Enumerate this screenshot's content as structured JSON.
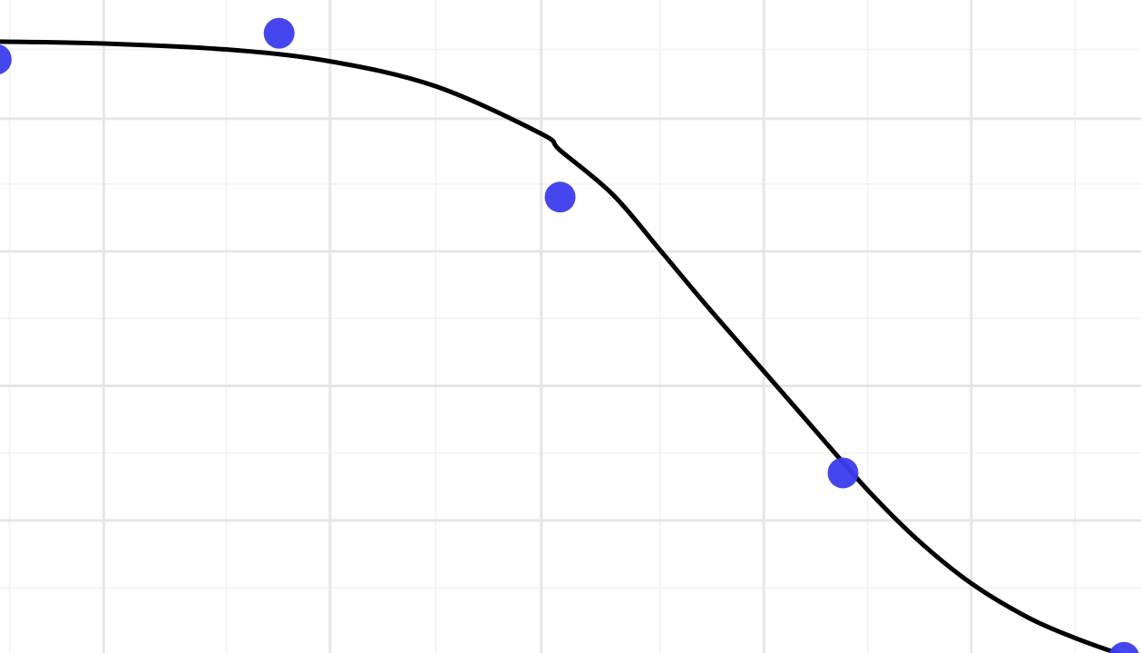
{
  "chart_data": {
    "type": "scatter",
    "title": "",
    "xlabel": "",
    "ylabel": "",
    "grid": true,
    "legend": "none",
    "xlim": [
      -0.25,
      5.8
    ],
    "ylim": [
      -0.1,
      1.55
    ],
    "x_major_gridlines": [
      0.3,
      1.5,
      2.62,
      3.8,
      4.9
    ],
    "x_minor_gridlines": [
      -0.2,
      0.95,
      2.06,
      3.25,
      4.35,
      5.45
    ],
    "y_major_gridlines": [
      1.25,
      0.915,
      0.575,
      0.235
    ],
    "y_minor_gridlines": [
      1.425,
      1.085,
      0.745,
      0.405,
      0.065
    ],
    "points": [
      {
        "x": -0.27,
        "y": 1.4
      },
      {
        "x": 1.23,
        "y": 1.466
      },
      {
        "x": 2.72,
        "y": 1.052
      },
      {
        "x": 4.22,
        "y": 0.355
      },
      {
        "x": 5.71,
        "y": -0.111
      }
    ],
    "fit_curve": [
      {
        "x": -0.26,
        "y": 1.445
      },
      {
        "x": 0.3,
        "y": 1.44
      },
      {
        "x": 0.95,
        "y": 1.425
      },
      {
        "x": 1.5,
        "y": 1.395
      },
      {
        "x": 2.06,
        "y": 1.332
      },
      {
        "x": 2.62,
        "y": 1.212
      },
      {
        "x": 2.72,
        "y": 1.17
      },
      {
        "x": 3.0,
        "y": 1.058
      },
      {
        "x": 3.25,
        "y": 0.918
      },
      {
        "x": 3.5,
        "y": 0.776
      },
      {
        "x": 3.8,
        "y": 0.612
      },
      {
        "x": 4.05,
        "y": 0.475
      },
      {
        "x": 4.35,
        "y": 0.312
      },
      {
        "x": 4.62,
        "y": 0.184
      },
      {
        "x": 4.9,
        "y": 0.076
      },
      {
        "x": 5.2,
        "y": -0.01
      },
      {
        "x": 5.45,
        "y": -0.062
      },
      {
        "x": 5.7,
        "y": -0.105
      }
    ],
    "colors": {
      "points": "#3c3cee",
      "curve": "#000000",
      "grid_major": "#e6e6e6",
      "grid_minor": "#f1f1f1",
      "background": "#ffffff"
    }
  }
}
